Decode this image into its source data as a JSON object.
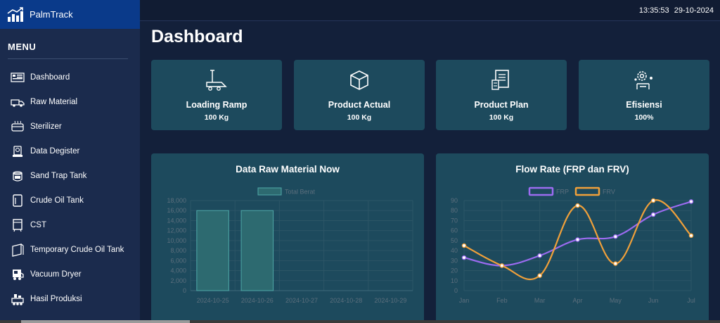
{
  "app": {
    "name": "PalmTrack"
  },
  "header": {
    "time": "13:35:53",
    "date": "29-10-2024"
  },
  "page_title": "Dashboard",
  "sidebar": {
    "menu_title": "MENU",
    "items": [
      {
        "label": "Dashboard",
        "icon": "dashboard-icon"
      },
      {
        "label": "Raw Material",
        "icon": "truck-icon"
      },
      {
        "label": "Sterilizer",
        "icon": "sterilizer-icon"
      },
      {
        "label": "Data Degister",
        "icon": "degister-icon"
      },
      {
        "label": "Sand Trap Tank",
        "icon": "sand-trap-icon"
      },
      {
        "label": "Crude Oil Tank",
        "icon": "tank-icon"
      },
      {
        "label": "CST",
        "icon": "cst-icon"
      },
      {
        "label": "Temporary Crude Oil Tank",
        "icon": "temp-tank-icon"
      },
      {
        "label": "Vacuum Dryer",
        "icon": "vacuum-dryer-icon"
      },
      {
        "label": "Hasil Produksi",
        "icon": "production-icon"
      }
    ]
  },
  "cards": [
    {
      "title": "Loading Ramp",
      "value": "100 Kg",
      "icon": "loading-ramp-icon"
    },
    {
      "title": "Product Actual",
      "value": "100 Kg",
      "icon": "box-icon"
    },
    {
      "title": "Product Plan",
      "value": "100 Kg",
      "icon": "plan-document-icon"
    },
    {
      "title": "Efisiensi",
      "value": "100%",
      "icon": "efficiency-gear-icon"
    }
  ],
  "colors": {
    "card_bg": "#1d4a5d",
    "frp": "#9b6bf0",
    "frv": "#f0a03a",
    "bar_fill": "#2d6a70",
    "bar_stroke": "#4fa8a8"
  },
  "chart_data": [
    {
      "type": "bar",
      "title": "Data Raw Material Now",
      "categories": [
        "2024-10-25",
        "2024-10-26",
        "2024-10-27",
        "2024-10-28",
        "2024-10-29"
      ],
      "series": [
        {
          "name": "Total Berat",
          "values": [
            16000,
            16000,
            0,
            0,
            0
          ]
        }
      ],
      "y_ticks": [
        "0",
        "2,000",
        "4,000",
        "6,000",
        "8,000",
        "10,000",
        "12,000",
        "14,000",
        "16,000",
        "18,000"
      ],
      "ylim": [
        0,
        18000
      ],
      "legend": "top"
    },
    {
      "type": "line",
      "title": "Flow Rate (FRP dan FRV)",
      "categories": [
        "Jan",
        "Feb",
        "Mar",
        "Apr",
        "May",
        "Jun",
        "Jul"
      ],
      "series": [
        {
          "name": "FRP",
          "values": [
            33,
            25,
            35,
            51,
            54,
            76,
            89
          ]
        },
        {
          "name": "FRV",
          "values": [
            45,
            25,
            15,
            85,
            27,
            90,
            55
          ]
        }
      ],
      "y_ticks": [
        "0",
        "10",
        "20",
        "30",
        "40",
        "50",
        "60",
        "70",
        "80",
        "90"
      ],
      "ylim": [
        0,
        90
      ],
      "legend": "top"
    }
  ]
}
